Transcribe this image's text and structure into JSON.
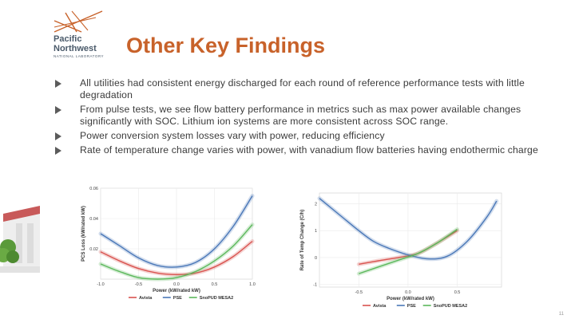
{
  "logo": {
    "line1": "Pacific",
    "line2": "Northwest",
    "line3": "NATIONAL LABORATORY"
  },
  "slide": {
    "title": "Other Key Findings",
    "bullets": [
      "All utilities had consistent energy discharged for each round of reference performance tests with little degradation",
      "From pulse tests, we see flow battery performance in metrics such as max power available changes significantly with SOC. Lithium ion systems are more consistent across SOC range.",
      "Power conversion system losses vary with power, reducing efficiency",
      "Rate of temperature change varies with power, with vanadium flow batteries having endothermic charge"
    ],
    "page_number": "11"
  },
  "colors": {
    "title": "#c8622a",
    "avista": "#d9534f",
    "pse": "#4a78b8",
    "snopud": "#5cb85c"
  },
  "chart_data": [
    {
      "type": "line",
      "xlabel": "Power (kW/rated kW)",
      "ylabel": "PCS Loss (kW/rated kW)",
      "xticks": [
        "-1.0",
        "-0.5",
        "0.0",
        "0.5",
        "1.0"
      ],
      "yticks": [
        "0.02",
        "0.04",
        "0.06"
      ],
      "xlim": [
        -1.0,
        1.0
      ],
      "ylim": [
        0.0,
        0.06
      ],
      "series": [
        {
          "name": "Avista",
          "color": "#d9534f",
          "x": [
            -1.0,
            -0.75,
            -0.5,
            -0.25,
            0.0,
            0.25,
            0.5,
            0.75,
            1.0
          ],
          "y": [
            0.018,
            0.012,
            0.007,
            0.004,
            0.003,
            0.004,
            0.008,
            0.015,
            0.025
          ]
        },
        {
          "name": "PSE",
          "color": "#4a78b8",
          "x": [
            -1.0,
            -0.75,
            -0.5,
            -0.25,
            0.0,
            0.25,
            0.5,
            0.75,
            1.0
          ],
          "y": [
            0.03,
            0.022,
            0.014,
            0.009,
            0.008,
            0.011,
            0.02,
            0.035,
            0.055
          ]
        },
        {
          "name": "SnoPUD MESA2",
          "color": "#5cb85c",
          "x": [
            -1.0,
            -0.75,
            -0.5,
            -0.25,
            0.0,
            0.25,
            0.5,
            0.75,
            1.0
          ],
          "y": [
            0.01,
            0.005,
            0.001,
            0.0,
            0.001,
            0.005,
            0.012,
            0.022,
            0.036
          ]
        }
      ],
      "legend": [
        "Avista",
        "PSE",
        "SnoPUD MESA2"
      ]
    },
    {
      "type": "line",
      "xlabel": "Power (kW/rated kW)",
      "ylabel": "Rate of Temp Change (C/h)",
      "xticks": [
        "-0.5",
        "0.0",
        "0.5"
      ],
      "yticks": [
        "-1",
        "0",
        "1",
        "2"
      ],
      "xlim": [
        -0.9,
        0.95
      ],
      "ylim": [
        -1.1,
        2.4
      ],
      "series": [
        {
          "name": "Avista",
          "color": "#d9534f",
          "x": [
            -0.5,
            -0.3,
            -0.1,
            0.1,
            0.3,
            0.5
          ],
          "y": [
            -0.25,
            -0.12,
            0.0,
            0.15,
            0.55,
            1.0
          ]
        },
        {
          "name": "PSE",
          "color": "#4a78b8",
          "x": [
            -0.9,
            -0.7,
            -0.5,
            -0.35,
            -0.2,
            0.0,
            0.2,
            0.4,
            0.6,
            0.8,
            0.9
          ],
          "y": [
            2.2,
            1.6,
            1.0,
            0.6,
            0.35,
            0.1,
            -0.05,
            0.05,
            0.6,
            1.5,
            2.1
          ]
        },
        {
          "name": "SnoPUD MESA2",
          "color": "#5cb85c",
          "x": [
            -0.5,
            -0.3,
            -0.1,
            0.1,
            0.3,
            0.5
          ],
          "y": [
            -0.6,
            -0.35,
            -0.1,
            0.15,
            0.55,
            1.05
          ]
        }
      ],
      "legend": [
        "Avista",
        "PSE",
        "SnoPUD MESA2"
      ]
    }
  ]
}
